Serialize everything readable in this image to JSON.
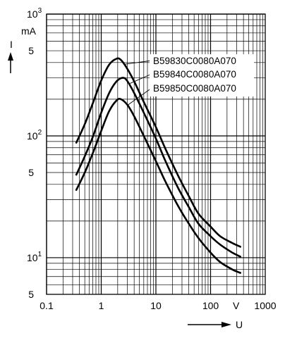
{
  "chart_data": {
    "type": "line",
    "x_scale": "log",
    "y_scale": "log",
    "xlim": [
      0.1,
      1000
    ],
    "ylim": [
      5,
      1000
    ],
    "grid": true,
    "legend_placement": "top-right",
    "x_unit_label": "V",
    "x_axis_letter": "U",
    "y_unit_label": "mA",
    "y_axis_letter": "I",
    "x_ticks": [
      {
        "v": 0.1,
        "t": "0.1"
      },
      {
        "v": 1,
        "t": "1"
      },
      {
        "v": 10,
        "t": "10"
      },
      {
        "v": 100,
        "t": "100"
      },
      {
        "v": 1000,
        "t": "1000"
      }
    ],
    "y_ticks": [
      {
        "v": 1000,
        "b": "10",
        "e": "3"
      },
      {
        "v": 500,
        "b": "5",
        "e": ""
      },
      {
        "v": 100,
        "b": "10",
        "e": "2"
      },
      {
        "v": 50,
        "b": "5",
        "e": ""
      },
      {
        "v": 10,
        "b": "10",
        "e": "1"
      },
      {
        "v": 5,
        "b": "5",
        "e": ""
      }
    ],
    "series": [
      {
        "name": "B59830C0080A070",
        "x": [
          0.35,
          0.5,
          0.7,
          1.0,
          1.4,
          1.9,
          2.3,
          3.0,
          4.0,
          6.0,
          10,
          15,
          25,
          40,
          60,
          100,
          150,
          250,
          350
        ],
        "y": [
          88,
          125,
          185,
          285,
          385,
          430,
          420,
          355,
          280,
          190,
          118,
          78,
          48,
          32,
          23,
          18,
          15,
          13.2,
          12.3
        ]
      },
      {
        "name": "B59840C0080A070",
        "x": [
          0.35,
          0.5,
          0.7,
          1.0,
          1.4,
          1.9,
          2.5,
          3.0,
          4.0,
          6.0,
          10,
          15,
          25,
          40,
          60,
          100,
          150,
          250,
          350
        ],
        "y": [
          48,
          68,
          98,
          155,
          225,
          280,
          300,
          282,
          225,
          155,
          95,
          62,
          38,
          26,
          19,
          15,
          12.8,
          11,
          10.2
        ]
      },
      {
        "name": "B59850C0080A070",
        "x": [
          0.35,
          0.5,
          0.7,
          1.0,
          1.4,
          1.9,
          2.3,
          3.0,
          4.0,
          6.0,
          10,
          15,
          25,
          40,
          60,
          100,
          150,
          250,
          350
        ],
        "y": [
          36,
          50,
          72,
          110,
          160,
          195,
          200,
          180,
          145,
          100,
          62,
          42,
          27,
          19,
          14.5,
          11,
          9.2,
          8,
          7.5
        ]
      }
    ]
  }
}
